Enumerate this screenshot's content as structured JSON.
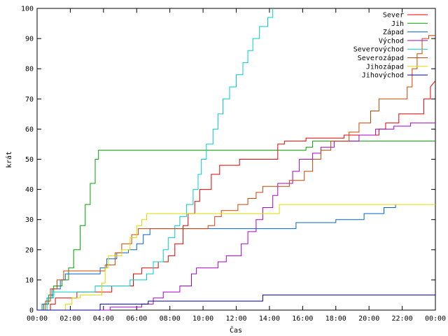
{
  "chart_data": {
    "type": "line",
    "title": "",
    "xlabel": "Čas",
    "ylabel": "krát",
    "xlim": [
      0,
      24
    ],
    "ylim": [
      0,
      100
    ],
    "grid": false,
    "legend_position": "top-right",
    "x_tick_labels": [
      "00:00",
      "02:00",
      "04:00",
      "06:00",
      "08:00",
      "10:00",
      "12:00",
      "14:00",
      "16:00",
      "18:00",
      "20:00",
      "22:00",
      "00:00"
    ],
    "y_tick_labels": [
      "0",
      "10",
      "20",
      "30",
      "40",
      "50",
      "60",
      "70",
      "80",
      "90",
      "100"
    ],
    "series": [
      {
        "name": "Sever",
        "color": "#e60000",
        "points": [
          [
            0,
            0
          ],
          [
            0.8,
            0
          ],
          [
            0.8,
            2
          ],
          [
            1.1,
            2
          ],
          [
            1.1,
            4
          ],
          [
            2.4,
            4
          ],
          [
            2.4,
            6
          ],
          [
            4.5,
            6
          ],
          [
            4.5,
            8
          ],
          [
            5.8,
            8
          ],
          [
            5.8,
            12
          ],
          [
            6.3,
            12
          ],
          [
            6.3,
            14
          ],
          [
            7.3,
            14
          ],
          [
            7.3,
            16
          ],
          [
            7.9,
            16
          ],
          [
            7.9,
            18
          ],
          [
            8.3,
            18
          ],
          [
            8.3,
            22
          ],
          [
            8.8,
            22
          ],
          [
            8.8,
            28
          ],
          [
            9.1,
            28
          ],
          [
            9.1,
            32
          ],
          [
            9.5,
            32
          ],
          [
            9.5,
            36
          ],
          [
            9.8,
            36
          ],
          [
            9.8,
            40
          ],
          [
            10.5,
            40
          ],
          [
            10.5,
            45
          ],
          [
            11.0,
            45
          ],
          [
            11.0,
            48
          ],
          [
            12.2,
            48
          ],
          [
            12.2,
            50
          ],
          [
            14.5,
            50
          ],
          [
            14.5,
            55
          ],
          [
            14.9,
            55
          ],
          [
            14.9,
            56
          ],
          [
            16.2,
            56
          ],
          [
            16.2,
            57
          ],
          [
            18.5,
            57
          ],
          [
            18.5,
            58
          ],
          [
            20.6,
            58
          ],
          [
            20.6,
            60
          ],
          [
            21.0,
            60
          ],
          [
            21.0,
            62
          ],
          [
            21.8,
            62
          ],
          [
            21.8,
            65
          ],
          [
            23.3,
            65
          ],
          [
            23.3,
            70
          ],
          [
            23.7,
            70
          ],
          [
            23.7,
            74
          ],
          [
            24,
            76
          ]
        ]
      },
      {
        "name": "Jih",
        "color": "#00a000",
        "points": [
          [
            0,
            0
          ],
          [
            0.4,
            0
          ],
          [
            0.4,
            2
          ],
          [
            0.7,
            2
          ],
          [
            0.7,
            5
          ],
          [
            1.0,
            5
          ],
          [
            1.0,
            8
          ],
          [
            1.5,
            8
          ],
          [
            1.5,
            10
          ],
          [
            1.9,
            10
          ],
          [
            1.9,
            14
          ],
          [
            2.2,
            14
          ],
          [
            2.2,
            20
          ],
          [
            2.6,
            20
          ],
          [
            2.6,
            28
          ],
          [
            2.9,
            28
          ],
          [
            2.9,
            35
          ],
          [
            3.2,
            35
          ],
          [
            3.2,
            42
          ],
          [
            3.5,
            42
          ],
          [
            3.5,
            50
          ],
          [
            3.7,
            50
          ],
          [
            3.7,
            53
          ],
          [
            16.2,
            53
          ],
          [
            16.2,
            54
          ],
          [
            16.6,
            54
          ],
          [
            16.6,
            56
          ],
          [
            24,
            56
          ]
        ]
      },
      {
        "name": "Západ",
        "color": "#0066cc",
        "points": [
          [
            0,
            0
          ],
          [
            0.3,
            0
          ],
          [
            0.3,
            2
          ],
          [
            0.6,
            2
          ],
          [
            0.6,
            4
          ],
          [
            0.9,
            4
          ],
          [
            0.9,
            7
          ],
          [
            1.4,
            7
          ],
          [
            1.4,
            10
          ],
          [
            1.7,
            10
          ],
          [
            1.7,
            12
          ],
          [
            3.8,
            12
          ],
          [
            3.8,
            14
          ],
          [
            4.2,
            14
          ],
          [
            4.2,
            17
          ],
          [
            4.8,
            17
          ],
          [
            4.8,
            19
          ],
          [
            5.5,
            19
          ],
          [
            5.5,
            20
          ],
          [
            6.0,
            20
          ],
          [
            6.0,
            22
          ],
          [
            6.4,
            22
          ],
          [
            6.4,
            25
          ],
          [
            6.8,
            25
          ],
          [
            6.8,
            27
          ],
          [
            15.6,
            27
          ],
          [
            15.6,
            29
          ],
          [
            18.0,
            29
          ],
          [
            18.0,
            30
          ],
          [
            19.7,
            30
          ],
          [
            19.7,
            32
          ],
          [
            20.9,
            32
          ],
          [
            20.9,
            34
          ],
          [
            21.6,
            34
          ],
          [
            21.6,
            35
          ]
        ]
      },
      {
        "name": "Východ",
        "color": "#aa00cc",
        "points": [
          [
            0,
            0
          ],
          [
            4.4,
            0
          ],
          [
            4.4,
            1
          ],
          [
            6.3,
            1
          ],
          [
            6.3,
            2
          ],
          [
            7.0,
            2
          ],
          [
            7.0,
            4
          ],
          [
            7.6,
            4
          ],
          [
            7.6,
            6
          ],
          [
            8.6,
            6
          ],
          [
            8.6,
            8
          ],
          [
            9.3,
            8
          ],
          [
            9.3,
            12
          ],
          [
            9.6,
            12
          ],
          [
            9.6,
            14
          ],
          [
            10.9,
            14
          ],
          [
            10.9,
            16
          ],
          [
            11.4,
            16
          ],
          [
            11.4,
            18
          ],
          [
            12.3,
            18
          ],
          [
            12.3,
            22
          ],
          [
            12.7,
            22
          ],
          [
            12.7,
            26
          ],
          [
            13.2,
            26
          ],
          [
            13.2,
            30
          ],
          [
            13.6,
            30
          ],
          [
            13.6,
            34
          ],
          [
            14.2,
            34
          ],
          [
            14.2,
            38
          ],
          [
            14.5,
            38
          ],
          [
            14.5,
            42
          ],
          [
            15.4,
            42
          ],
          [
            15.4,
            46
          ],
          [
            15.8,
            46
          ],
          [
            15.8,
            50
          ],
          [
            16.6,
            50
          ],
          [
            16.6,
            52
          ],
          [
            17.1,
            52
          ],
          [
            17.1,
            54
          ],
          [
            17.9,
            54
          ],
          [
            17.9,
            56
          ],
          [
            19.4,
            56
          ],
          [
            19.4,
            58
          ],
          [
            20.4,
            58
          ],
          [
            20.4,
            60
          ],
          [
            21.5,
            60
          ],
          [
            21.5,
            61
          ],
          [
            22.5,
            61
          ],
          [
            22.5,
            62
          ],
          [
            24,
            62
          ]
        ]
      },
      {
        "name": "Severovýchod",
        "color": "#00cccc",
        "points": [
          [
            0,
            0
          ],
          [
            0.6,
            0
          ],
          [
            0.6,
            4
          ],
          [
            1.0,
            4
          ],
          [
            1.0,
            6
          ],
          [
            3.5,
            6
          ],
          [
            3.5,
            8
          ],
          [
            5.6,
            8
          ],
          [
            5.6,
            10
          ],
          [
            6.6,
            10
          ],
          [
            6.6,
            12
          ],
          [
            7.0,
            12
          ],
          [
            7.0,
            16
          ],
          [
            7.6,
            16
          ],
          [
            7.6,
            20
          ],
          [
            7.9,
            20
          ],
          [
            7.9,
            24
          ],
          [
            8.3,
            24
          ],
          [
            8.3,
            28
          ],
          [
            8.6,
            28
          ],
          [
            8.6,
            31
          ],
          [
            9.0,
            31
          ],
          [
            9.0,
            35
          ],
          [
            9.4,
            35
          ],
          [
            9.4,
            40
          ],
          [
            9.7,
            40
          ],
          [
            9.7,
            45
          ],
          [
            9.9,
            45
          ],
          [
            9.9,
            50
          ],
          [
            10.2,
            50
          ],
          [
            10.2,
            55
          ],
          [
            10.6,
            55
          ],
          [
            10.6,
            60
          ],
          [
            10.9,
            60
          ],
          [
            10.9,
            65
          ],
          [
            11.2,
            65
          ],
          [
            11.2,
            70
          ],
          [
            11.6,
            70
          ],
          [
            11.6,
            74
          ],
          [
            12.0,
            74
          ],
          [
            12.0,
            78
          ],
          [
            12.4,
            78
          ],
          [
            12.4,
            82
          ],
          [
            12.7,
            82
          ],
          [
            12.7,
            86
          ],
          [
            13.0,
            86
          ],
          [
            13.0,
            90
          ],
          [
            13.4,
            90
          ],
          [
            13.4,
            94
          ],
          [
            13.9,
            94
          ],
          [
            13.9,
            97
          ],
          [
            14.2,
            97
          ],
          [
            14.2,
            100
          ]
        ]
      },
      {
        "name": "Severozápad",
        "color": "#cc4400",
        "points": [
          [
            0,
            0
          ],
          [
            0.5,
            0
          ],
          [
            0.5,
            3
          ],
          [
            0.8,
            3
          ],
          [
            0.8,
            7
          ],
          [
            1.2,
            7
          ],
          [
            1.2,
            10
          ],
          [
            1.6,
            10
          ],
          [
            1.6,
            13
          ],
          [
            4.1,
            13
          ],
          [
            4.1,
            15
          ],
          [
            4.7,
            15
          ],
          [
            4.7,
            19
          ],
          [
            5.1,
            19
          ],
          [
            5.1,
            22
          ],
          [
            5.7,
            22
          ],
          [
            5.7,
            25
          ],
          [
            6.1,
            25
          ],
          [
            6.1,
            27
          ],
          [
            10.3,
            27
          ],
          [
            10.3,
            28
          ],
          [
            10.7,
            28
          ],
          [
            10.7,
            31
          ],
          [
            11.1,
            31
          ],
          [
            11.1,
            33
          ],
          [
            12.1,
            33
          ],
          [
            12.1,
            35
          ],
          [
            12.7,
            35
          ],
          [
            12.7,
            37
          ],
          [
            13.2,
            37
          ],
          [
            13.2,
            39
          ],
          [
            13.6,
            39
          ],
          [
            13.6,
            41
          ],
          [
            15.2,
            41
          ],
          [
            15.2,
            43
          ],
          [
            16.1,
            43
          ],
          [
            16.1,
            46
          ],
          [
            16.6,
            46
          ],
          [
            16.6,
            50
          ],
          [
            17.1,
            50
          ],
          [
            17.1,
            53
          ],
          [
            17.7,
            53
          ],
          [
            17.7,
            56
          ],
          [
            18.8,
            56
          ],
          [
            18.8,
            59
          ],
          [
            19.4,
            59
          ],
          [
            19.4,
            62
          ],
          [
            20.1,
            62
          ],
          [
            20.1,
            66
          ],
          [
            20.6,
            66
          ],
          [
            20.6,
            70
          ],
          [
            22.3,
            70
          ],
          [
            22.3,
            74
          ],
          [
            22.6,
            74
          ],
          [
            22.6,
            80
          ],
          [
            22.9,
            80
          ],
          [
            22.9,
            85
          ],
          [
            23.2,
            85
          ],
          [
            23.2,
            90
          ],
          [
            23.6,
            90
          ],
          [
            23.6,
            91
          ],
          [
            24,
            91
          ]
        ]
      },
      {
        "name": "Jihozápad",
        "color": "#dddd00",
        "points": [
          [
            0,
            0
          ],
          [
            1.7,
            0
          ],
          [
            1.7,
            2
          ],
          [
            2.1,
            2
          ],
          [
            2.1,
            4
          ],
          [
            2.6,
            4
          ],
          [
            2.6,
            5
          ],
          [
            3.9,
            5
          ],
          [
            3.9,
            9
          ],
          [
            4.1,
            9
          ],
          [
            4.1,
            14
          ],
          [
            4.3,
            14
          ],
          [
            4.3,
            18
          ],
          [
            5.1,
            18
          ],
          [
            5.1,
            20
          ],
          [
            5.6,
            20
          ],
          [
            5.6,
            24
          ],
          [
            6.0,
            24
          ],
          [
            6.0,
            28
          ],
          [
            6.3,
            28
          ],
          [
            6.3,
            30
          ],
          [
            6.6,
            30
          ],
          [
            6.6,
            32
          ],
          [
            14.6,
            32
          ],
          [
            14.6,
            35
          ],
          [
            24,
            35
          ]
        ]
      },
      {
        "name": "Jihovýchod",
        "color": "#000099",
        "points": [
          [
            0,
            0
          ],
          [
            3.8,
            0
          ],
          [
            3.8,
            2
          ],
          [
            6.7,
            2
          ],
          [
            6.7,
            3
          ],
          [
            13.6,
            3
          ],
          [
            13.6,
            5
          ],
          [
            24,
            5
          ]
        ]
      }
    ]
  }
}
